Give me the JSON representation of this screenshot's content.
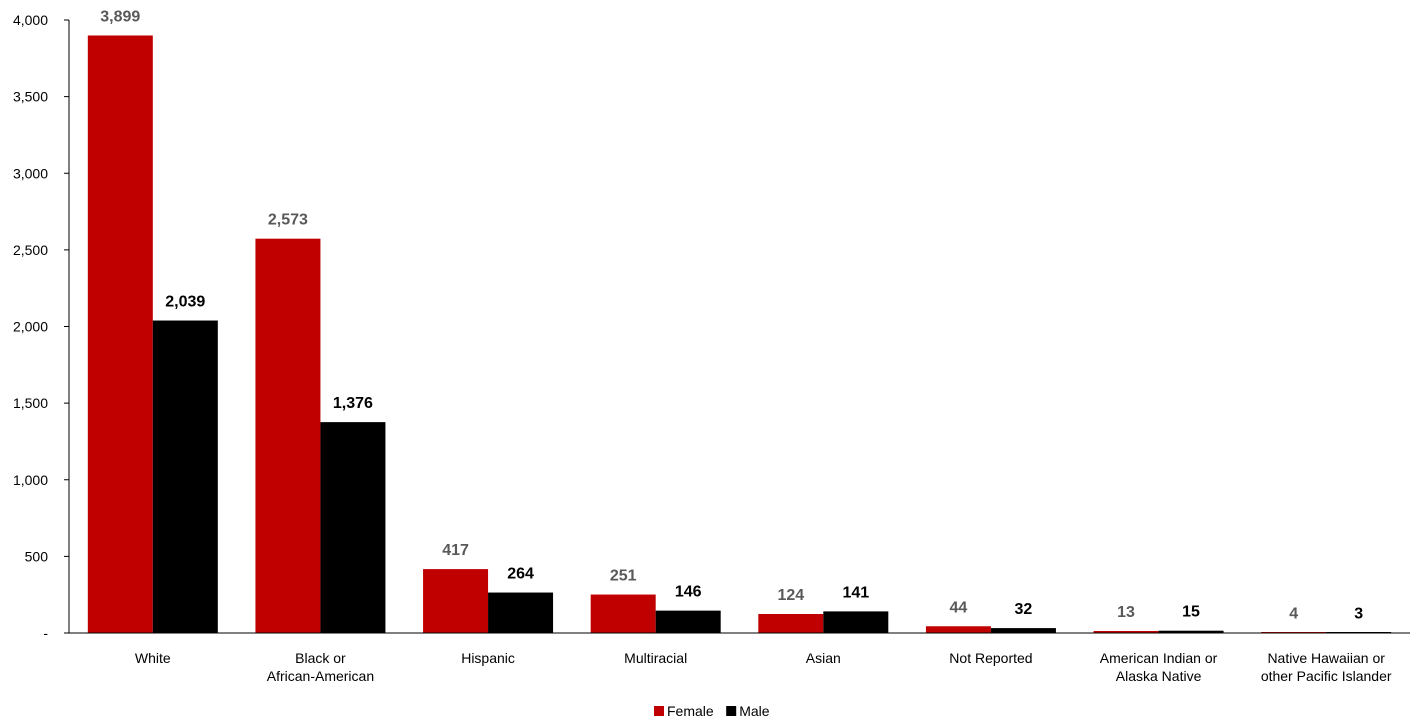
{
  "chart_data": {
    "type": "bar",
    "categories": [
      [
        "White"
      ],
      [
        "Black or",
        "African-American"
      ],
      [
        "Hispanic"
      ],
      [
        "Multiracial"
      ],
      [
        "Asian"
      ],
      [
        "Not Reported"
      ],
      [
        "American Indian or",
        "Alaska Native"
      ],
      [
        "Native Hawaiian or",
        "other Pacific Islander"
      ]
    ],
    "series": [
      {
        "name": "Female",
        "color": "#C00000",
        "label_color": "#595959",
        "values": [
          3899,
          2573,
          417,
          251,
          124,
          44,
          13,
          4
        ],
        "labels": [
          "3,899",
          "2,573",
          "417",
          "251",
          "124",
          "44",
          "13",
          "4"
        ]
      },
      {
        "name": "Male",
        "color": "#000000",
        "label_color": "#000000",
        "values": [
          2039,
          1376,
          264,
          146,
          141,
          32,
          15,
          3
        ],
        "labels": [
          "2,039",
          "1,376",
          "264",
          "146",
          "141",
          "32",
          "15",
          "3"
        ]
      }
    ],
    "ylim": [
      0,
      4000
    ],
    "yticks": [
      {
        "value": 0,
        "label": "-"
      },
      {
        "value": 500,
        "label": "500"
      },
      {
        "value": 1000,
        "label": "1,000"
      },
      {
        "value": 1500,
        "label": "1,500"
      },
      {
        "value": 2000,
        "label": "2,000"
      },
      {
        "value": 2500,
        "label": "2,500"
      },
      {
        "value": 3000,
        "label": "3,000"
      },
      {
        "value": 3500,
        "label": "3,500"
      },
      {
        "value": 4000,
        "label": "4,000"
      }
    ],
    "grid": false,
    "legend_position": "bottom"
  }
}
